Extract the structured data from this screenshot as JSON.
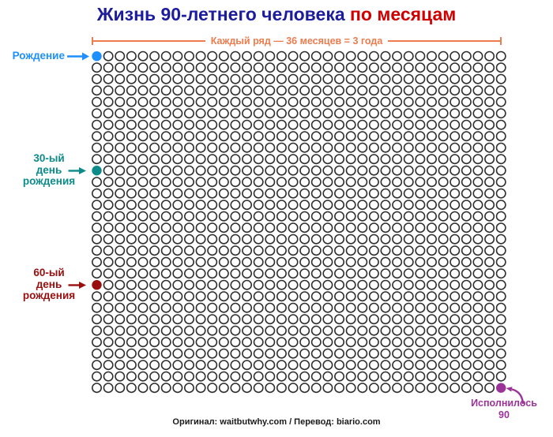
{
  "title": {
    "main": "Жизнь 90-летнего человека ",
    "highlight": "по месяцам"
  },
  "bracket": {
    "label": "Каждый ряд — 36 месяцев = 3 года"
  },
  "labels": {
    "birth": "Рождение",
    "birthday30": [
      "30-ый",
      "день",
      "рождения"
    ],
    "birthday60": [
      "60-ый",
      "день",
      "рождения"
    ],
    "turned90": [
      "Исполнилось",
      "90"
    ]
  },
  "footer": {
    "credits": "Оригинал: waitbutwhy.com  /  Перевод: biario.com"
  },
  "colors": {
    "title_navy": "#1c1c9c",
    "title_red": "#d10000",
    "orange": "#ed7c4f",
    "birth_blue": "#1e8fff",
    "teal": "#0d8b8b",
    "dark_red": "#990f0f",
    "purple": "#9b3399",
    "dot_outline": "#2f2f2f",
    "footer_black": "#1a1a1a"
  },
  "chart_data": {
    "type": "waffle-dot-grid",
    "title": "Жизнь 90-летнего человека по месяцам",
    "rows": 30,
    "cols": 36,
    "unit_per_dot": "1 месяц",
    "months_per_row": 36,
    "years_per_row": 3,
    "total_months": 1080,
    "total_years": 90,
    "milestones": [
      {
        "label": "Рождение",
        "month": 1,
        "row": 0,
        "col": 0,
        "color": "#1e8fff"
      },
      {
        "label": "30-ый день рождения",
        "month": 361,
        "row": 10,
        "col": 0,
        "color": "#0d8b8b"
      },
      {
        "label": "60-ый день рождения",
        "month": 721,
        "row": 20,
        "col": 0,
        "color": "#990f0f"
      },
      {
        "label": "Исполнилось 90",
        "month": 1080,
        "row": 29,
        "col": 35,
        "color": "#9b3399"
      }
    ]
  }
}
